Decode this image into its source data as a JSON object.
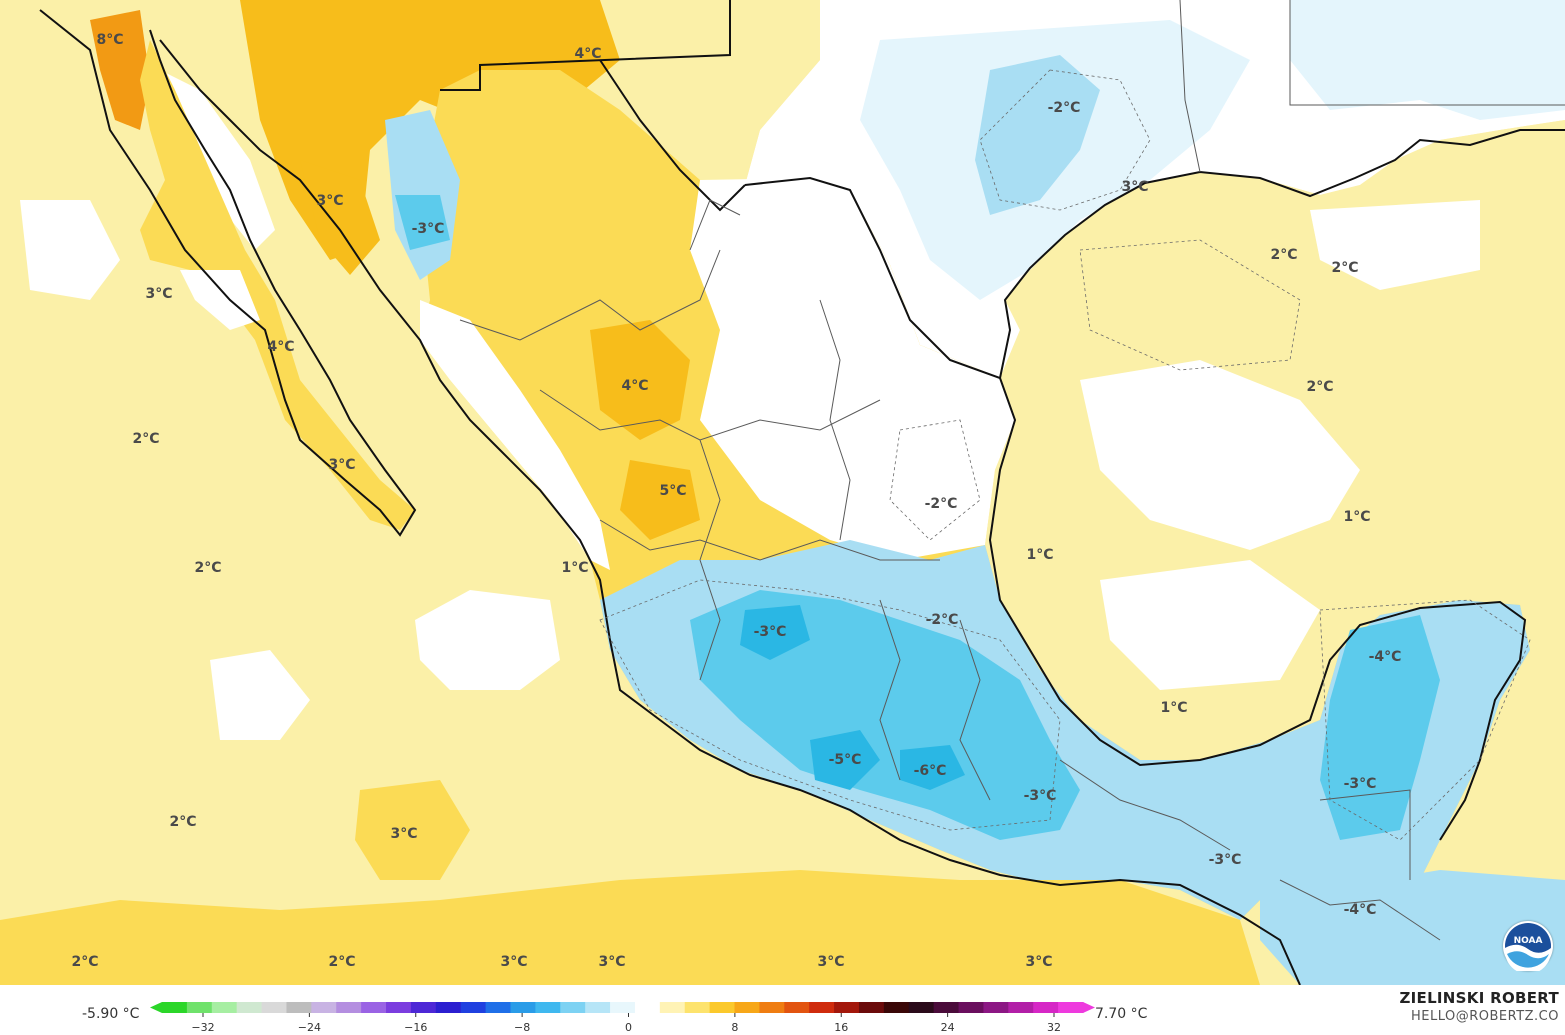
{
  "map": {
    "colors": {
      "ocean_warm": "#fbf0a8",
      "warm": "#fbdb55",
      "warmer": "#f7bd1b",
      "hot": "#f29a14",
      "neutral": "#ffffff",
      "cool_light": "#e4f5fc",
      "cool": "#a9def3",
      "cold": "#5ccbec",
      "colder": "#2ab7e4",
      "border": "#111111",
      "state_border": "#5a5a5a"
    },
    "labels": [
      {
        "id": "label-1",
        "text": "8°C"
      },
      {
        "id": "label-2",
        "text": "4°C"
      },
      {
        "id": "label-3",
        "text": "3°C"
      },
      {
        "id": "label-4",
        "text": "-3°C"
      },
      {
        "id": "label-5",
        "text": "3°C"
      },
      {
        "id": "label-6",
        "text": "4°C"
      },
      {
        "id": "label-7",
        "text": "2°C"
      },
      {
        "id": "label-8",
        "text": "3°C"
      },
      {
        "id": "label-9",
        "text": "4°C"
      },
      {
        "id": "label-10",
        "text": "5°C"
      },
      {
        "id": "label-11",
        "text": "2°C"
      },
      {
        "id": "label-12",
        "text": "1°C"
      },
      {
        "id": "label-13",
        "text": "-2°C"
      },
      {
        "id": "label-14",
        "text": "3°C"
      },
      {
        "id": "label-15",
        "text": "2°C"
      },
      {
        "id": "label-16",
        "text": "2°C"
      },
      {
        "id": "label-17",
        "text": "2°C"
      },
      {
        "id": "label-18",
        "text": "1°C"
      },
      {
        "id": "label-19",
        "text": "-2°C"
      },
      {
        "id": "label-20",
        "text": "1°C"
      },
      {
        "id": "label-21",
        "text": "-3°C"
      },
      {
        "id": "label-22",
        "text": "-2°C"
      },
      {
        "id": "label-23",
        "text": "-4°C"
      },
      {
        "id": "label-24",
        "text": "1°C"
      },
      {
        "id": "label-25",
        "text": "-5°C"
      },
      {
        "id": "label-26",
        "text": "-6°C"
      },
      {
        "id": "label-27",
        "text": "-3°C"
      },
      {
        "id": "label-28",
        "text": "-3°C"
      },
      {
        "id": "label-29",
        "text": "2°C"
      },
      {
        "id": "label-30",
        "text": "3°C"
      },
      {
        "id": "label-31",
        "text": "-3°C"
      },
      {
        "id": "label-32",
        "text": "-4°C"
      },
      {
        "id": "label-33",
        "text": "2°C"
      },
      {
        "id": "label-34",
        "text": "2°C"
      },
      {
        "id": "label-35",
        "text": "3°C"
      },
      {
        "id": "label-36",
        "text": "3°C"
      },
      {
        "id": "label-37",
        "text": "3°C"
      },
      {
        "id": "label-38",
        "text": "3°C"
      }
    ]
  },
  "legend": {
    "min_label": "-5.90 °C",
    "max_label": "7.70 °C",
    "ticks": [
      "−32",
      "−24",
      "−16",
      "−8",
      "0",
      "8",
      "16",
      "24",
      "32"
    ],
    "colors": [
      "#2bd629",
      "#6fe26b",
      "#a6eea2",
      "#cfe8d0",
      "#d9d9d9",
      "#bdbdbd",
      "#c8b3e3",
      "#b48ee0",
      "#9a63e4",
      "#7b3ddf",
      "#4d27d6",
      "#2b1fd0",
      "#1f40e0",
      "#1f6fe8",
      "#2a9ce8",
      "#3fb8ef",
      "#7dd2f3",
      "#b6e5f7",
      "#e8f7fc",
      "#ffffff",
      "#fff3b5",
      "#fde36d",
      "#fbc92c",
      "#f7a718",
      "#ef7d12",
      "#e25410",
      "#cf2b0d",
      "#a3170b",
      "#6b0b0b",
      "#3a0707",
      "#2a0a1a",
      "#4a0b3a",
      "#6a0f5e",
      "#8c1784",
      "#b21fa7",
      "#d627c6",
      "#ee3ade"
    ]
  },
  "branding": {
    "author": "ZIELINSKI ROBERT",
    "email": "HELLO@ROBERTZ.CO",
    "logo_text": "NOAA"
  }
}
